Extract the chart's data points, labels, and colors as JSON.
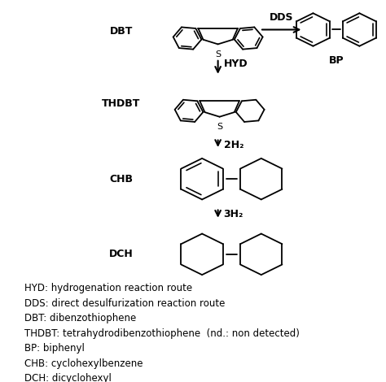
{
  "bg_color": "#ffffff",
  "text_color": "#000000",
  "legend_lines": [
    "HYD: hydrogenation reaction route",
    "DDS: direct desulfurization reaction route",
    "DBT: dibenzothiophene",
    "THDBT: tetrahydrodibenzothiophene  (nd.: non detected)",
    "BP: biphenyl",
    "CHB: cyclohexylbenzene",
    "DCH: dicyclohexyl"
  ],
  "figsize": [
    4.74,
    4.7
  ],
  "dpi": 100
}
